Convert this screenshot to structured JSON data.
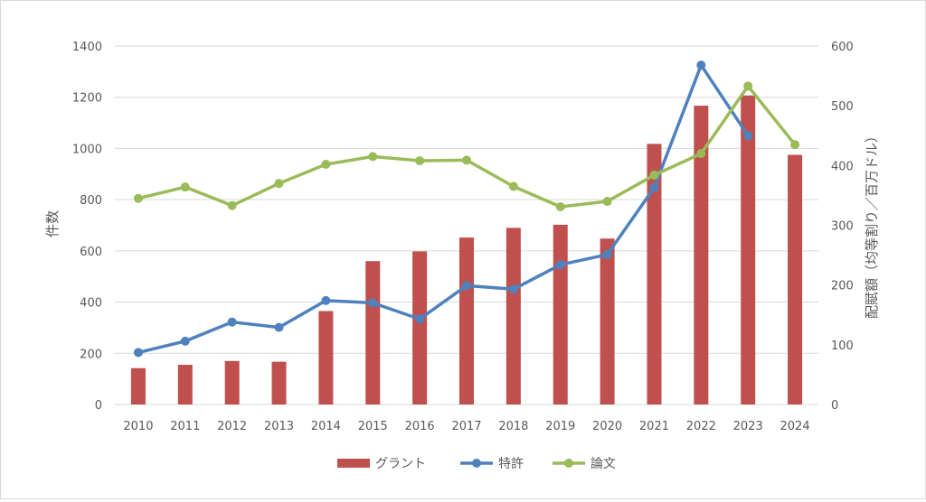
{
  "chart_data": {
    "type": "bar",
    "categories": [
      "2010",
      "2011",
      "2012",
      "2013",
      "2014",
      "2015",
      "2016",
      "2017",
      "2018",
      "2019",
      "2020",
      "2021",
      "2022",
      "2023",
      "2024"
    ],
    "series": [
      {
        "name": "グラント",
        "type": "bar",
        "axis": "left",
        "values": [
          142,
          155,
          170,
          167,
          365,
          560,
          598,
          652,
          690,
          702,
          648,
          1018,
          1167,
          1207,
          975
        ]
      },
      {
        "name": "特許",
        "type": "line",
        "axis": "right",
        "values": [
          87,
          106,
          138,
          129,
          174,
          170,
          143,
          199,
          193,
          234,
          251,
          363,
          568,
          450,
          null
        ]
      },
      {
        "name": "論文",
        "type": "line",
        "axis": "right",
        "values": [
          345,
          364,
          333,
          370,
          402,
          415,
          408,
          409,
          365,
          331,
          340,
          384,
          420,
          533,
          435
        ]
      }
    ],
    "ylabel": "件数",
    "y2label": "配賦額（均等割り／百万ドル）",
    "ylim": [
      0,
      1400
    ],
    "y2lim": [
      0,
      600
    ],
    "yticks": [
      "0",
      "200",
      "400",
      "600",
      "800",
      "1000",
      "1200",
      "1400"
    ],
    "y2ticks": [
      "0",
      "100",
      "200",
      "300",
      "400",
      "500",
      "600"
    ],
    "grid": true,
    "legend_position": "bottom",
    "colors": {
      "bar": "#c0504d",
      "patent": "#4f81bd",
      "paper": "#9bbb59",
      "grid": "#d9d9d9",
      "text": "#595959"
    }
  }
}
